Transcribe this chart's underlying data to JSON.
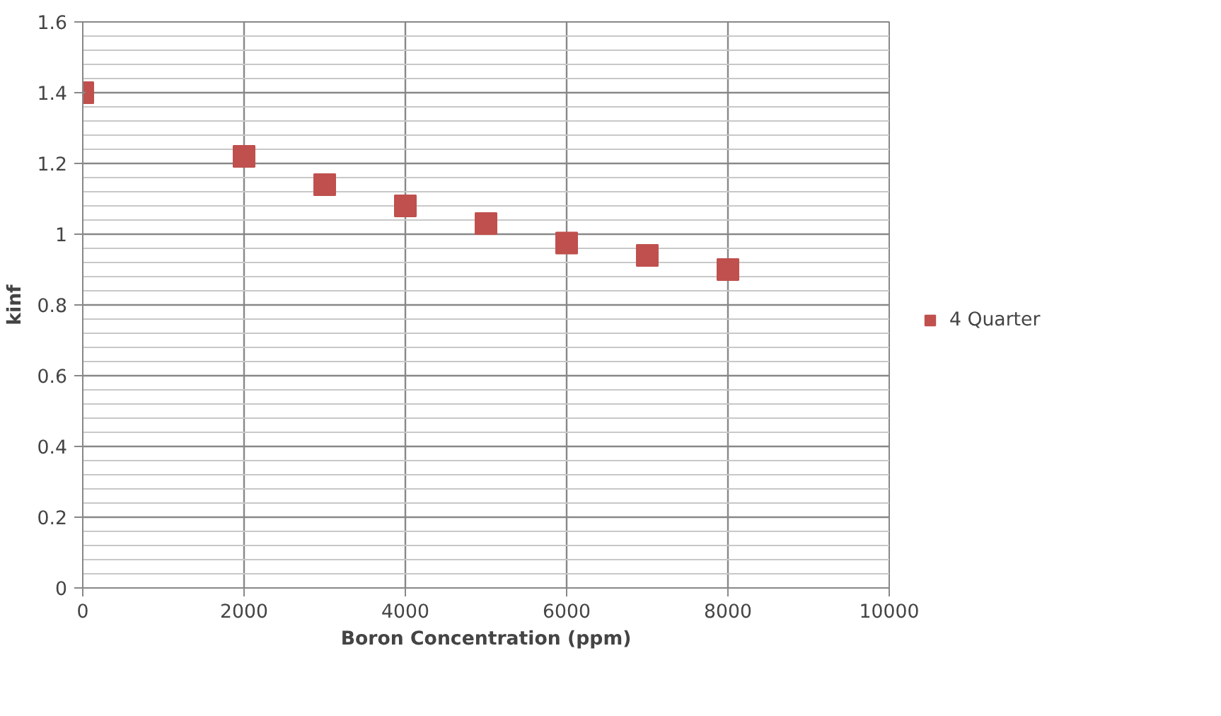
{
  "chart_data": {
    "type": "scatter",
    "xlabel": "Boron Concentration (ppm)",
    "ylabel": "kinf",
    "x": [
      0,
      2000,
      3000,
      4000,
      5000,
      6000,
      7000,
      8000
    ],
    "series": [
      {
        "name": "4 Quarter",
        "color": "#c0504d",
        "values": [
          1.4,
          1.22,
          1.14,
          1.08,
          1.03,
          0.975,
          0.94,
          0.9
        ]
      }
    ],
    "xlim": [
      0,
      10000
    ],
    "xticks": [
      0,
      2000,
      4000,
      6000,
      8000,
      10000
    ],
    "ylim": [
      0,
      1.6
    ],
    "yticks": [
      0,
      0.2,
      0.4,
      0.6,
      0.8,
      1,
      1.2,
      1.4,
      1.6
    ],
    "grid": true,
    "legend": "right",
    "marker": "square"
  }
}
